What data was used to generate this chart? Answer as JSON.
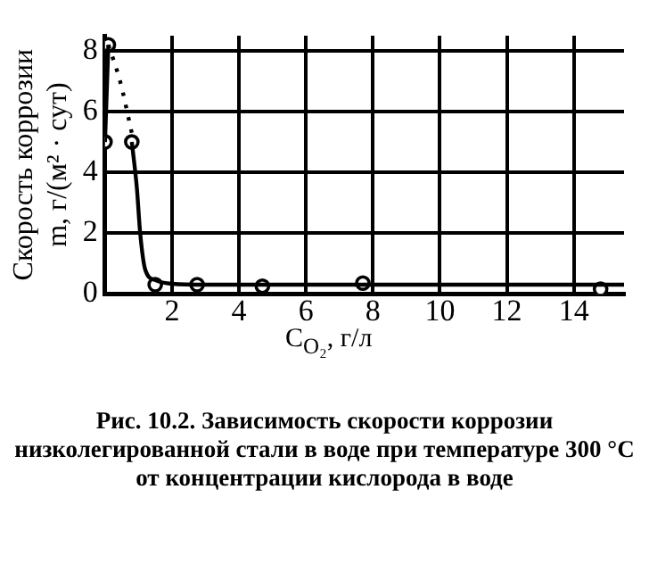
{
  "chart_data": {
    "type": "line",
    "ylabel": "Скорость коррозии\nm, г/(м² · сут)",
    "xlabel": "C$_{O₂}$, г/л",
    "annotations": [
      "Рис. 10.2. Зависимость скорости коррозии низколегированной стали в воде при температуре 300 °С от концентрации кислорода в воде"
    ],
    "xlim": [
      0,
      15.5
    ],
    "xticks": [
      2,
      4,
      6,
      8,
      10,
      12,
      14
    ],
    "ylim": [
      0,
      8.5
    ],
    "yticks": [
      0,
      2,
      4,
      6,
      8
    ],
    "grid": true,
    "series": [
      {
        "color": "#000000",
        "line_style": "solid",
        "marker": "none",
        "x": [
          0,
          0.1
        ],
        "values": [
          5,
          8.2
        ]
      },
      {
        "color": "#000000",
        "line_style": "dotted",
        "marker": "none",
        "x": [
          0.1,
          0.45,
          0.8
        ],
        "values": [
          8.2,
          7,
          5.3
        ]
      },
      {
        "color": "#000000",
        "line_style": "solid",
        "marker": "none",
        "x": [
          0.8,
          0.95,
          1.05,
          1.2,
          1.5,
          2,
          3,
          15.5
        ],
        "values": [
          5,
          3.5,
          2,
          0.8,
          0.45,
          0.33,
          0.3,
          0.3
        ]
      },
      {
        "type": "scatter",
        "color": "#000000",
        "marker": "circle",
        "x": [
          0,
          0.1,
          0.8,
          1.5,
          2.75,
          4.7,
          7.7,
          14.8
        ],
        "values": [
          5,
          8.2,
          5,
          0.3,
          0.3,
          0.25,
          0.35,
          0.15
        ]
      }
    ]
  }
}
